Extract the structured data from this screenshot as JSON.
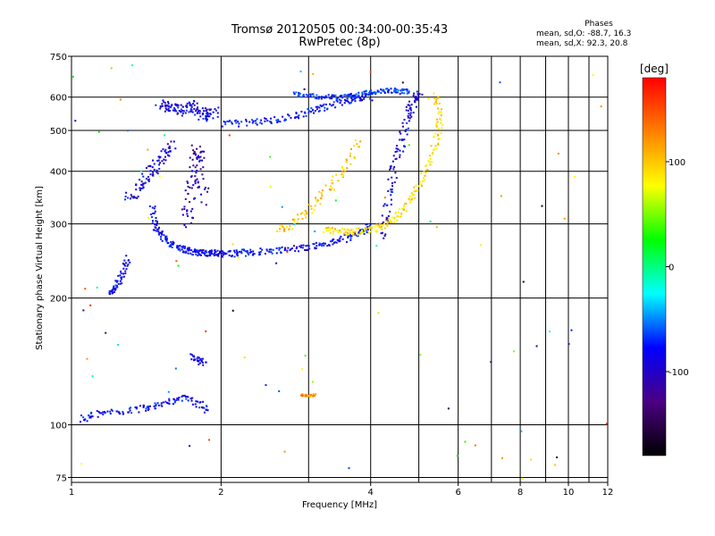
{
  "header": {
    "title_line1": "Tromsø 20120505 00:34:00-00:35:43",
    "title_line2": "RwPretec (8p)",
    "phases_title": "Phases",
    "phases_line_o": "mean, sd,O: -88.7, 16.3",
    "phases_line_x": "mean, sd,X:  92.3, 20.8"
  },
  "chart_data": {
    "type": "scatter",
    "xlabel": "Frequency [MHz]",
    "ylabel": "Stationary phase Virtual Height [km]",
    "xscale": "log",
    "yscale": "log",
    "xlim": [
      1,
      12
    ],
    "ylim": [
      73,
      750
    ],
    "x_major_ticks": [
      1,
      2,
      4,
      6,
      8,
      10,
      12
    ],
    "x_minor_gridlines": [
      3,
      5,
      7,
      9,
      11
    ],
    "y_ticks": [
      75,
      100,
      200,
      300,
      400,
      500,
      600,
      750
    ],
    "grid": true,
    "colorbar": {
      "label": "[deg]",
      "range": [
        -180,
        180
      ],
      "ticks": [
        100,
        0,
        -100
      ],
      "colors": [
        "#000000",
        "#4b0082",
        "#0000ff",
        "#00ffff",
        "#00ff00",
        "#ffff00",
        "#ff8000",
        "#ff0000"
      ]
    },
    "traces": [
      {
        "f": [
          1.45,
          1.47,
          1.5,
          1.55,
          1.6,
          1.65,
          1.7,
          1.75,
          1.8,
          1.85,
          1.9,
          1.95,
          2.0,
          2.1,
          2.2,
          2.3,
          2.5,
          2.7,
          2.9,
          3.1,
          3.3,
          3.5,
          3.7,
          3.9,
          4.0
        ],
        "h": [
          330,
          300,
          285,
          275,
          268,
          263,
          260,
          258,
          257,
          256,
          256,
          255,
          255,
          255,
          256,
          257,
          259,
          261,
          263,
          266,
          270,
          275,
          282,
          290,
          297
        ],
        "spread": 0.03,
        "phase": -100
      },
      {
        "f": [
          1.5,
          1.55,
          1.6,
          1.65,
          1.7,
          1.75,
          1.8,
          1.85,
          1.9,
          1.95
        ],
        "h": [
          580,
          570,
          560,
          560,
          565,
          575,
          560,
          540,
          545,
          555
        ],
        "spread": 0.05,
        "phase": -105
      },
      {
        "f": [
          2.0,
          2.2,
          2.4,
          2.6,
          2.8,
          3.0,
          3.2,
          3.4,
          3.6,
          3.8,
          4.0
        ],
        "h": [
          520,
          520,
          525,
          530,
          540,
          555,
          565,
          580,
          590,
          595,
          600
        ],
        "spread": 0.03,
        "phase": -95
      },
      {
        "f": [
          2.8,
          3.0,
          3.2,
          3.4,
          3.6,
          3.8,
          4.0,
          4.2,
          4.4,
          4.6,
          4.8
        ],
        "h": [
          610,
          605,
          600,
          600,
          605,
          610,
          615,
          620,
          622,
          620,
          618
        ],
        "spread": 0.02,
        "phase": -85
      },
      {
        "f": [
          4.2,
          4.3,
          4.4,
          4.5,
          4.6,
          4.7,
          4.8,
          4.9,
          5.0
        ],
        "h": [
          280,
          320,
          370,
          420,
          470,
          520,
          560,
          590,
          610
        ],
        "spread": 0.04,
        "phase": -110
      },
      {
        "f": [
          3.2,
          3.4,
          3.6,
          3.8,
          4.0,
          4.2,
          4.4,
          4.6,
          4.8,
          5.0,
          5.2,
          5.4,
          5.5,
          5.5,
          5.4
        ],
        "h": [
          290,
          288,
          287,
          288,
          290,
          295,
          305,
          320,
          340,
          370,
          410,
          460,
          510,
          560,
          610
        ],
        "spread": 0.03,
        "phase": 95
      },
      {
        "f": [
          2.6,
          2.8,
          3.0,
          3.2,
          3.4,
          3.6,
          3.8
        ],
        "h": [
          290,
          300,
          320,
          350,
          380,
          420,
          480
        ],
        "spread": 0.04,
        "phase": 105
      },
      {
        "f": [
          1.3,
          1.35,
          1.4,
          1.45,
          1.5,
          1.55,
          1.6
        ],
        "h": [
          340,
          360,
          380,
          400,
          420,
          440,
          460
        ],
        "spread": 0.05,
        "phase": -110
      },
      {
        "f": [
          1.7,
          1.72,
          1.75,
          1.78,
          1.8,
          1.82,
          1.85
        ],
        "h": [
          300,
          340,
          380,
          420,
          460,
          400,
          330
        ],
        "spread": 0.06,
        "phase": -125
      },
      {
        "f": [
          1.05,
          1.1,
          1.2,
          1.3,
          1.4,
          1.5,
          1.6,
          1.7,
          1.8,
          1.9
        ],
        "h": [
          103,
          106,
          107,
          108,
          110,
          112,
          114,
          116,
          112,
          108
        ],
        "spread": 0.03,
        "phase": -100
      },
      {
        "f": [
          1.2,
          1.22,
          1.25,
          1.28,
          1.3
        ],
        "h": [
          205,
          210,
          220,
          235,
          250
        ],
        "spread": 0.03,
        "phase": -100
      },
      {
        "f": [
          1.75,
          1.8,
          1.85
        ],
        "h": [
          145,
          143,
          140
        ],
        "spread": 0.03,
        "phase": -110
      },
      {
        "f": [
          2.9,
          3.0,
          3.1
        ],
        "h": [
          118,
          117,
          118
        ],
        "spread": 0.01,
        "phase": 130
      }
    ]
  }
}
